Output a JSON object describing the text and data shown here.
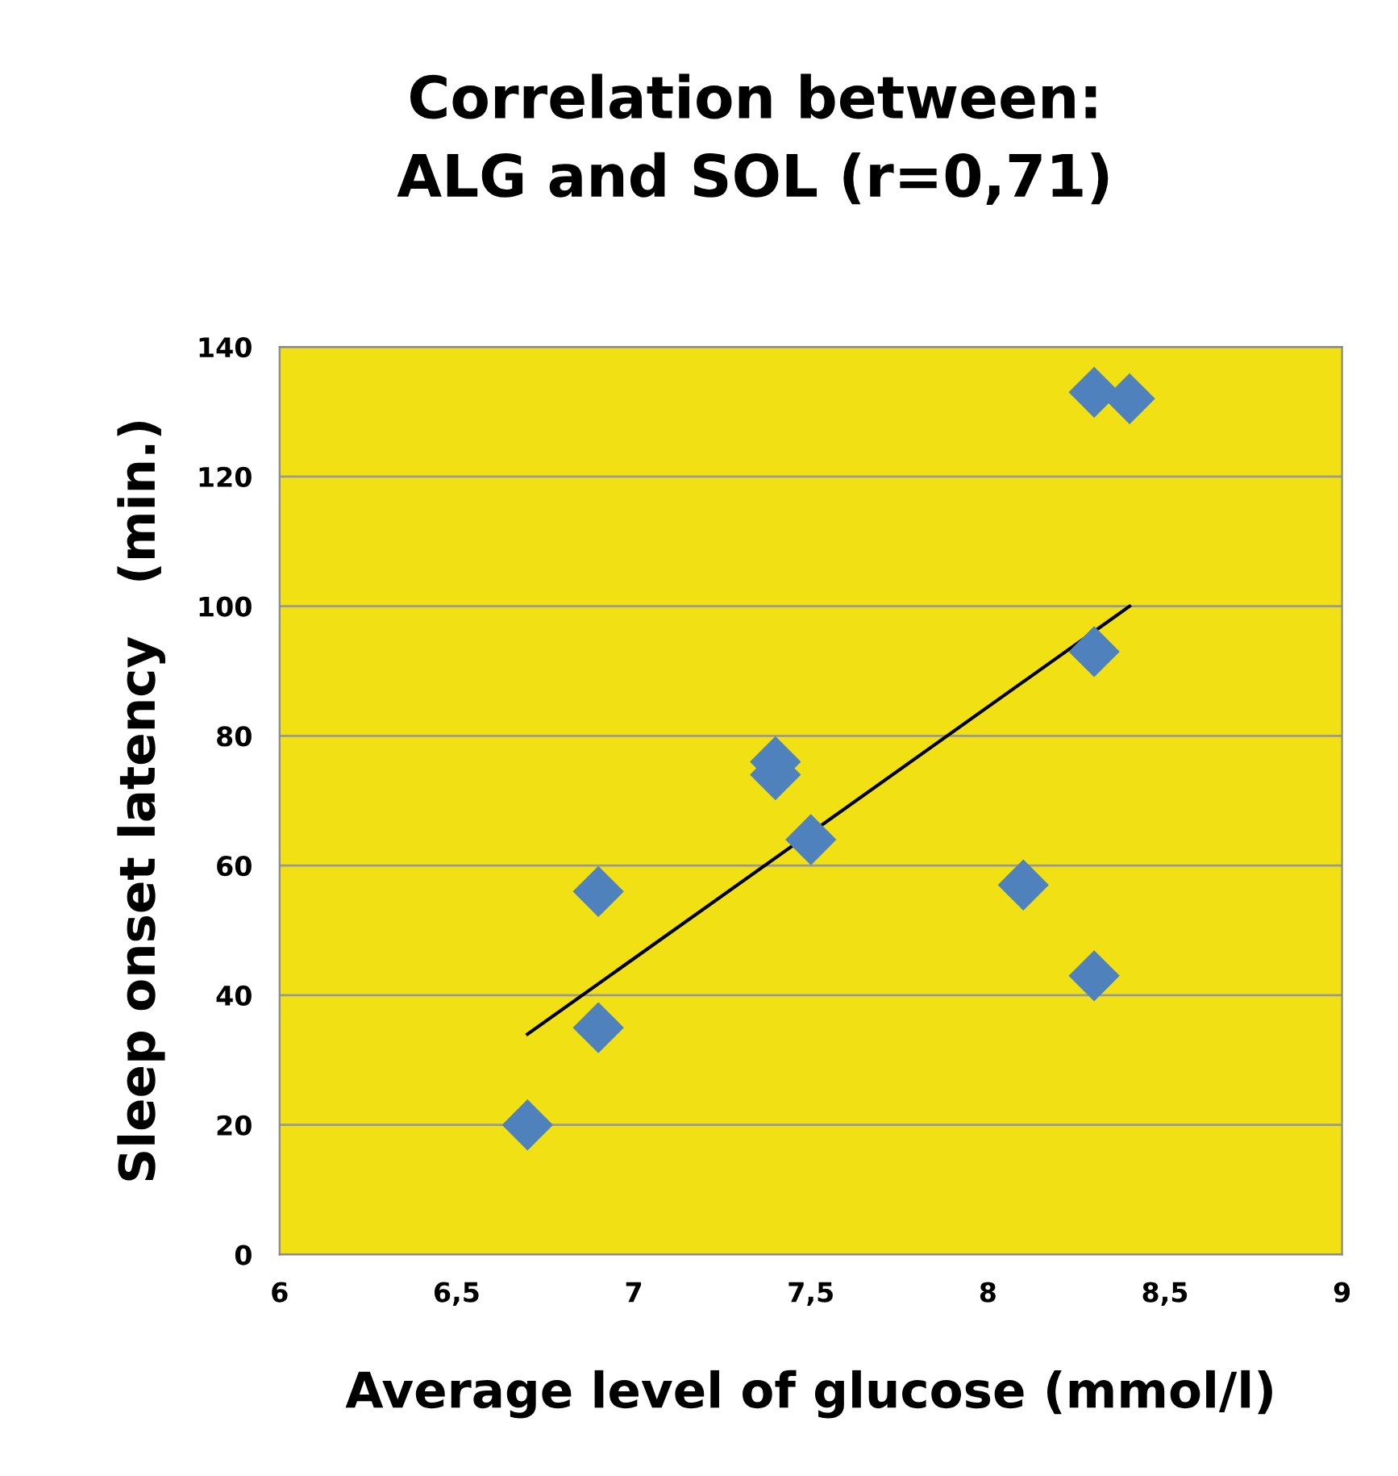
{
  "chart_data": {
    "type": "scatter",
    "title": "Correlation between:\nALG and SOL (r=0,71)",
    "xlabel": "Average level of glucose (mmol/l)",
    "ylabel": "Sleep onset latency   (min.)",
    "series": [
      {
        "color": "#4f81bd",
        "marker": "diamond",
        "x": [
          6.7,
          6.9,
          6.9,
          7.4,
          7.4,
          7.5,
          8.1,
          8.3,
          8.3,
          8.3,
          8.4
        ],
        "values": [
          20,
          56,
          35,
          76,
          74,
          64,
          57,
          43,
          93,
          133,
          132
        ]
      },
      {
        "type": "line",
        "color": "#000000",
        "marker": "none",
        "line_style": "solid",
        "x": [
          6.7,
          8.4
        ],
        "values": [
          34,
          100
        ]
      }
    ],
    "xlim": [
      6,
      9
    ],
    "xticks": [
      6,
      {
        "value": 6.5,
        "label": "6,5"
      },
      7,
      {
        "value": 7.5,
        "label": "7,5"
      },
      8,
      {
        "value": 8.5,
        "label": "8,5"
      },
      9
    ],
    "ylim": [
      0,
      140
    ],
    "yticks": [
      0,
      20,
      40,
      60,
      80,
      100,
      120,
      140
    ],
    "grid": "y"
  }
}
